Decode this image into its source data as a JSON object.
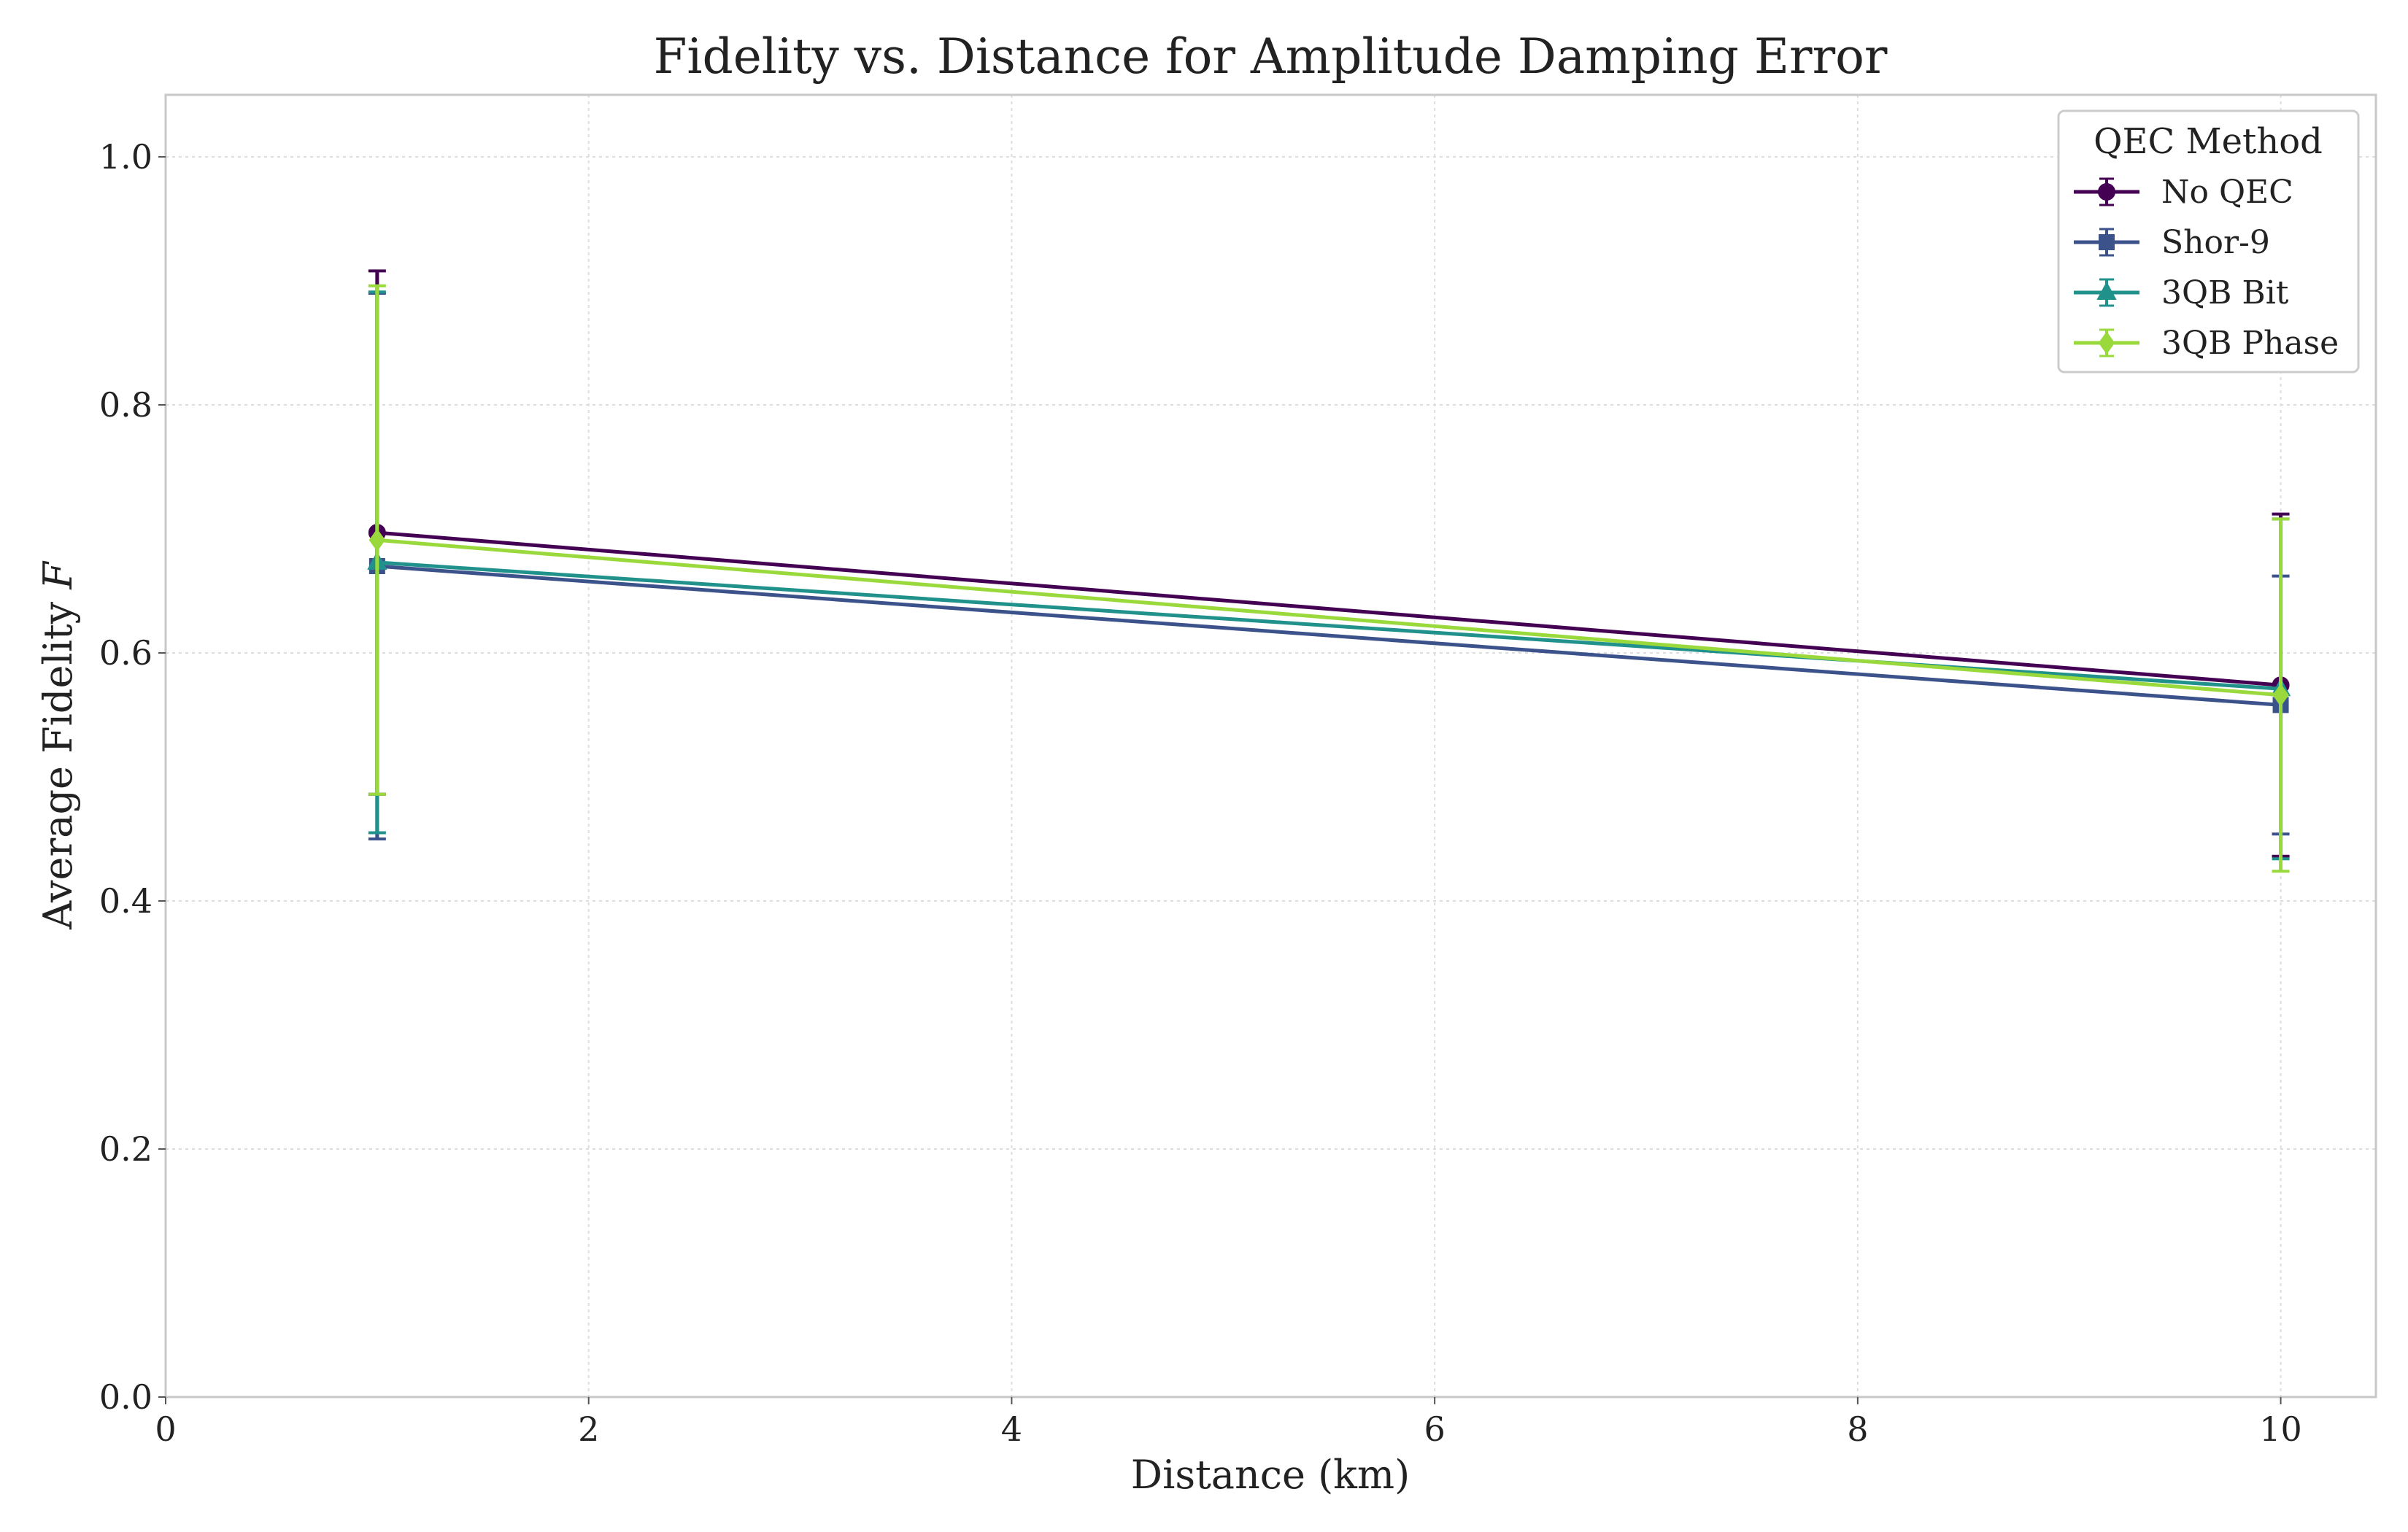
{
  "chart_data": {
    "type": "line",
    "title": "Fidelity vs. Distance for Amplitude Damping Error",
    "xlabel": "Distance (km)",
    "ylabel": "Average Fidelity ",
    "ylabel_symbol": "F",
    "xlim": [
      0,
      10.45
    ],
    "ylim": [
      0,
      1.05
    ],
    "xticks": [
      0,
      2,
      4,
      6,
      8,
      10
    ],
    "yticks": [
      0.0,
      0.2,
      0.4,
      0.6,
      0.8,
      1.0
    ],
    "xtick_labels": [
      "0",
      "2",
      "4",
      "6",
      "8",
      "10"
    ],
    "ytick_labels": [
      "0.0",
      "0.2",
      "0.4",
      "0.6",
      "0.8",
      "1.0"
    ],
    "grid": true,
    "legend": {
      "title": "QEC Method",
      "placement": "top-right"
    },
    "x": [
      1,
      10
    ],
    "series": [
      {
        "name": "No QEC",
        "marker": "circle",
        "color": "#440154",
        "values": [
          0.697,
          0.574
        ],
        "errors": [
          0.211,
          0.138
        ]
      },
      {
        "name": "Shor-9",
        "marker": "square",
        "color": "#3b528b",
        "values": [
          0.67,
          0.558
        ],
        "errors": [
          0.22,
          0.104
        ]
      },
      {
        "name": "3QB Bit",
        "marker": "triangle",
        "color": "#21918c",
        "values": [
          0.673,
          0.571
        ],
        "errors": [
          0.218,
          0.137
        ]
      },
      {
        "name": "3QB Phase",
        "marker": "diamond",
        "color": "#9ad93c",
        "values": [
          0.691,
          0.566
        ],
        "errors": [
          0.205,
          0.142
        ]
      }
    ]
  }
}
